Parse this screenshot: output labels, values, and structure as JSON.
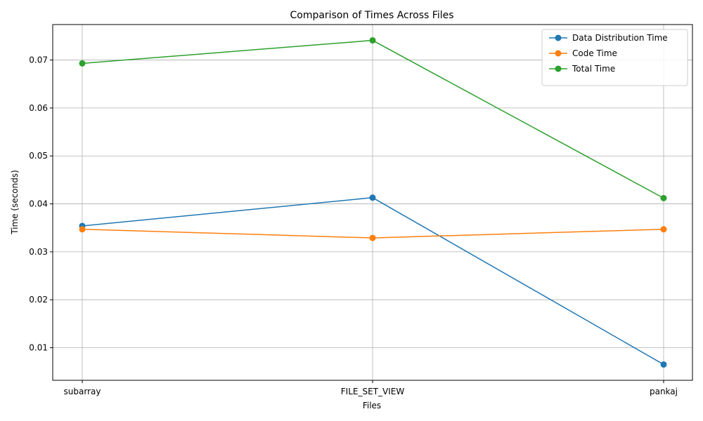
{
  "chart_data": {
    "type": "line",
    "title": "Comparison of Times Across Files",
    "xlabel": "Files",
    "ylabel": "Time (seconds)",
    "categories": [
      "subarray",
      "FILE_SET_VIEW",
      "pankaj"
    ],
    "ylim": [
      0.0032,
      0.0774
    ],
    "yticks": [
      0.01,
      0.02,
      0.03,
      0.04,
      0.05,
      0.06,
      0.07
    ],
    "ytick_labels": [
      "0.01",
      "0.02",
      "0.03",
      "0.04",
      "0.05",
      "0.06",
      "0.07"
    ],
    "grid": true,
    "legend_position": "top-right",
    "series": [
      {
        "name": "Data Distribution Time",
        "color": "#1f77b4",
        "values": [
          0.0354,
          0.0413,
          0.0065
        ]
      },
      {
        "name": "Code Time",
        "color": "#ff7f0e",
        "values": [
          0.0347,
          0.0329,
          0.0347
        ]
      },
      {
        "name": "Total Time",
        "color": "#2ca02c",
        "values": [
          0.0693,
          0.0741,
          0.0412
        ]
      }
    ]
  }
}
